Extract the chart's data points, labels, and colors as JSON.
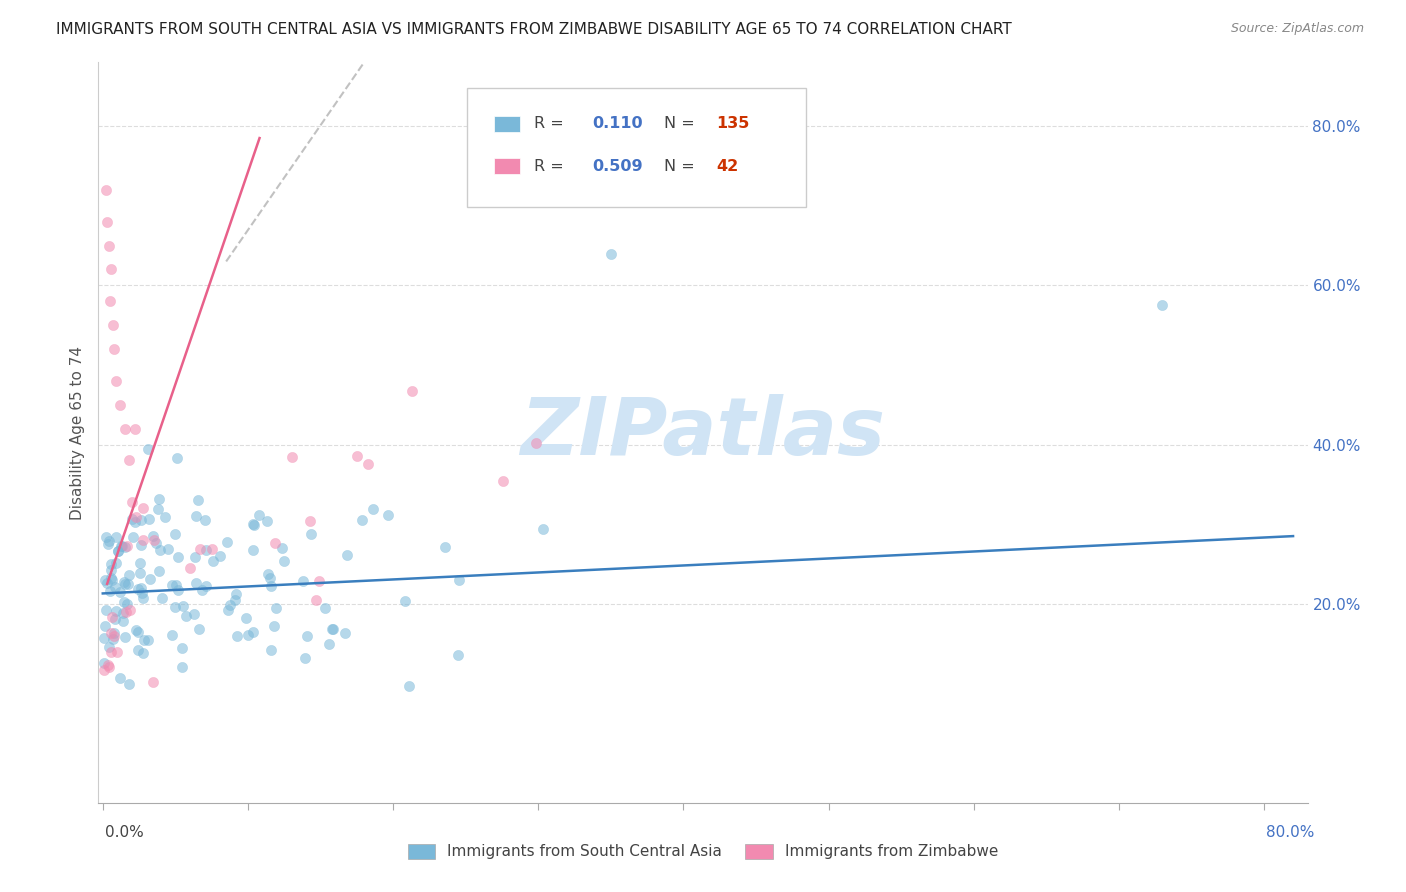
{
  "title": "IMMIGRANTS FROM SOUTH CENTRAL ASIA VS IMMIGRANTS FROM ZIMBABWE DISABILITY AGE 65 TO 74 CORRELATION CHART",
  "source": "Source: ZipAtlas.com",
  "ylabel": "Disability Age 65 to 74",
  "legend_blue_R": "0.110",
  "legend_blue_N": "135",
  "legend_pink_R": "0.509",
  "legend_pink_N": "42",
  "blue_color": "#7ab8d9",
  "pink_color": "#f28ab0",
  "blue_line_color": "#3a7ebe",
  "pink_line_color": "#e8608a",
  "dash_line_color": "#bbbbbb",
  "watermark_text": "ZIPatlas",
  "watermark_color": "#d0e4f5",
  "title_fontsize": 11,
  "source_fontsize": 9,
  "axis_label_color": "#555555",
  "right_tick_color": "#4472c4",
  "ytick_values": [
    0.2,
    0.4,
    0.6,
    0.8
  ],
  "ytick_labels": [
    "20.0%",
    "40.0%",
    "60.0%",
    "80.0%"
  ],
  "xlim": [
    -0.003,
    0.83
  ],
  "ylim": [
    -0.05,
    0.88
  ]
}
